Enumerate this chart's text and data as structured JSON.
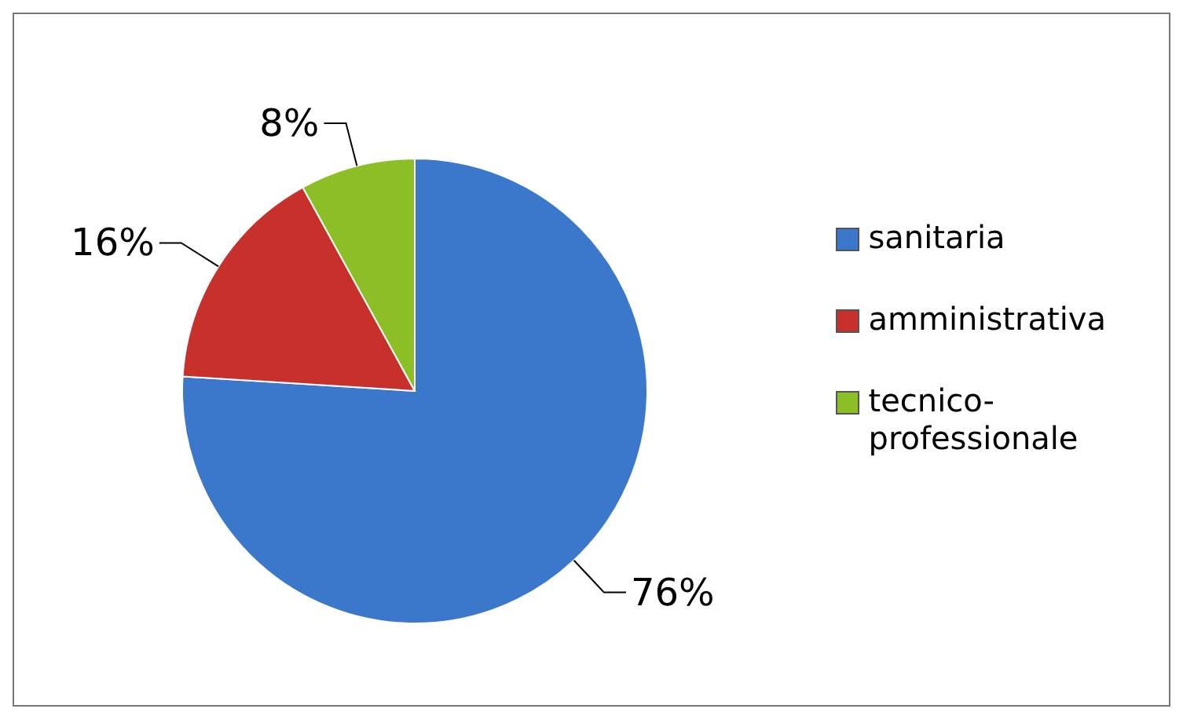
{
  "chart_data": {
    "type": "pie",
    "categories": [
      "sanitaria",
      "amministrativa",
      "tecnico-professionale"
    ],
    "values": [
      76,
      16,
      8
    ],
    "colors": [
      "#3b78cc",
      "#c8302c",
      "#8cbf26"
    ],
    "value_labels": [
      "76%",
      "16%",
      "8%"
    ],
    "legend": "right"
  }
}
